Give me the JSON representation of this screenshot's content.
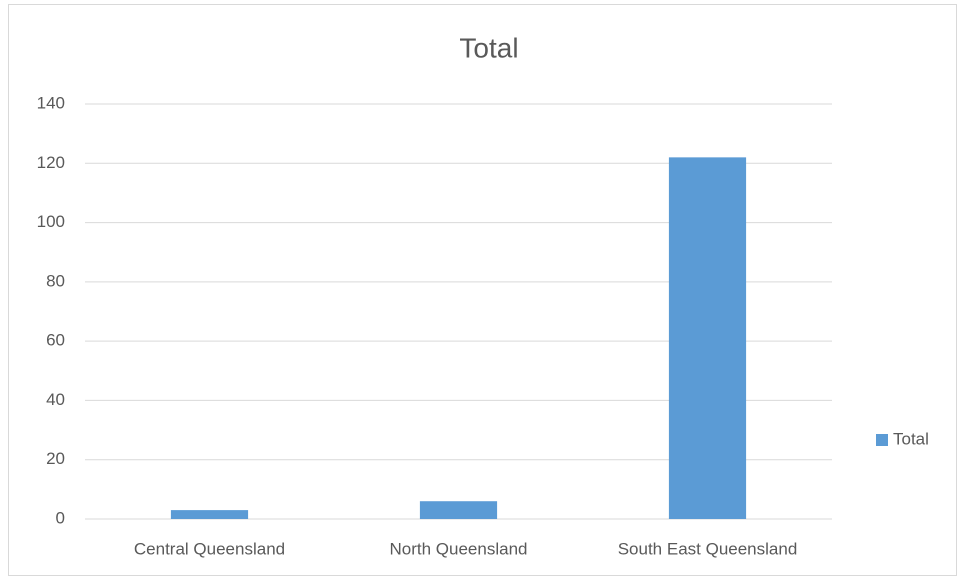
{
  "chart_data": {
    "type": "bar",
    "title": "Total",
    "categories": [
      "Central Queensland",
      "North Queensland",
      "South East Queensland"
    ],
    "series": [
      {
        "name": "Total",
        "color": "#5b9bd5",
        "values": [
          3,
          6,
          122
        ]
      }
    ],
    "ylim": [
      0,
      140
    ],
    "yticks": [
      0,
      20,
      40,
      60,
      80,
      100,
      120,
      140
    ],
    "grid": true,
    "legend": "right"
  }
}
